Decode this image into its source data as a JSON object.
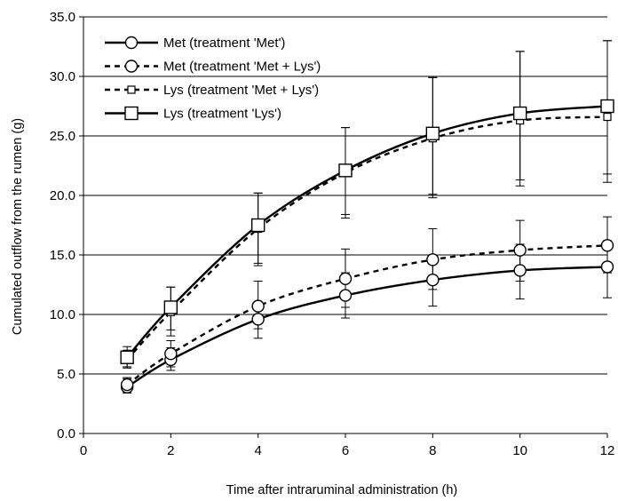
{
  "chart_data": {
    "type": "line",
    "xlabel": "Time after intraruminal administration (h)",
    "ylabel": "Cumulated outflow from the rumen (g)",
    "xlim": [
      0,
      12
    ],
    "ylim": [
      0,
      35
    ],
    "x_ticks": [
      "0",
      "2",
      "4",
      "6",
      "8",
      "10",
      "12"
    ],
    "y_ticks": [
      "0.0",
      "5.0",
      "10.0",
      "15.0",
      "20.0",
      "25.0",
      "30.0",
      "35.0"
    ],
    "grid": "horizontal",
    "legend_position": "top-left",
    "x": [
      1,
      2,
      4,
      6,
      8,
      10,
      12
    ],
    "series": [
      {
        "name": "Met (treatment 'Met')",
        "line": "solid",
        "marker": "circle",
        "values": [
          3.9,
          6.2,
          9.6,
          11.6,
          12.9,
          13.7,
          14.0
        ],
        "err_low": [
          3.4,
          5.3,
          8.0,
          9.7,
          10.7,
          11.3,
          11.4
        ],
        "err_high": [
          4.6,
          7.2,
          11.0,
          13.5,
          14.8,
          15.9,
          16.2
        ]
      },
      {
        "name": "Met (treatment 'Met + Lys')",
        "line": "dashed",
        "marker": "circle",
        "values": [
          4.1,
          6.7,
          10.7,
          13.0,
          14.6,
          15.4,
          15.8
        ],
        "err_low": [
          3.5,
          5.6,
          8.8,
          10.6,
          12.1,
          12.8,
          13.5
        ],
        "err_high": [
          4.7,
          7.8,
          12.8,
          15.5,
          17.2,
          17.9,
          18.2
        ]
      },
      {
        "name": "Lys (treatment 'Met + Lys')",
        "line": "dashed",
        "marker": "small-square",
        "values": [
          6.2,
          10.2,
          17.2,
          21.9,
          24.8,
          26.3,
          26.6
        ],
        "err_low": [
          5.5,
          8.2,
          14.1,
          18.1,
          19.8,
          20.8,
          21.1
        ],
        "err_high": [
          7.0,
          12.3,
          20.2,
          25.7,
          29.9,
          32.1,
          33.0
        ]
      },
      {
        "name": "Lys (treatment 'Lys')",
        "line": "solid",
        "marker": "square",
        "values": [
          6.4,
          10.6,
          17.5,
          22.1,
          25.2,
          26.9,
          27.5
        ],
        "err_low": [
          5.6,
          8.7,
          14.3,
          18.4,
          20.1,
          21.3,
          21.8
        ],
        "err_high": [
          7.3,
          12.3,
          20.2,
          25.7,
          29.9,
          32.1,
          33.0
        ]
      }
    ]
  }
}
